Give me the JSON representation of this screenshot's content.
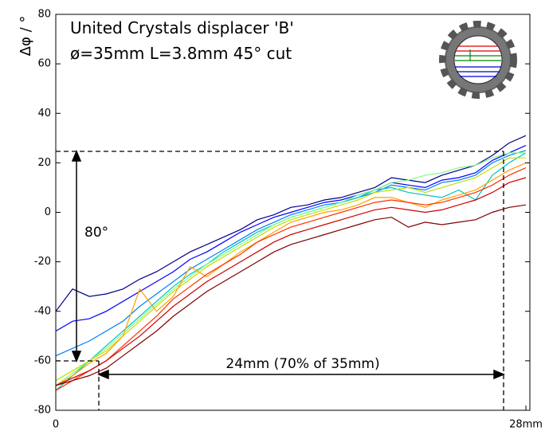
{
  "chart_data": {
    "type": "line",
    "title": "United Crystals displacer 'B'",
    "subtitle": "ø=35mm L=3.8mm 45° cut",
    "y_label": "Δφ / °",
    "annotations": [
      "80°",
      "24mm (70% of 35mm)"
    ],
    "x": [
      0,
      1,
      2,
      3,
      4,
      5,
      6,
      7,
      8,
      9,
      10,
      11,
      12,
      13,
      14,
      15,
      16,
      17,
      18,
      19,
      20,
      21,
      22,
      23,
      24,
      25,
      26,
      27,
      28
    ],
    "xlim": [
      0,
      28
    ],
    "xticks": [
      0,
      {
        "value": 28,
        "label": "28mm"
      }
    ],
    "ylim": [
      -80,
      80
    ],
    "yticks": [
      -80,
      -60,
      -40,
      -20,
      0,
      20,
      40,
      60,
      80
    ],
    "series": [
      {
        "color": "#00008b",
        "values": [
          -40,
          -31,
          -34,
          -33,
          -31,
          -27,
          -24,
          -20,
          -16,
          -13,
          -10,
          -7,
          -3,
          -1,
          2,
          3,
          5,
          6,
          8,
          10,
          14,
          13,
          12,
          15,
          17,
          19,
          23,
          28,
          31
        ]
      },
      {
        "color": "#0000ff",
        "values": [
          -48,
          -44,
          -43,
          -40,
          -36,
          -32,
          -28,
          -24,
          -19,
          -16,
          -12,
          -8,
          -5,
          -2,
          0,
          2,
          4,
          5,
          7,
          9,
          12,
          11,
          10,
          13,
          14,
          16,
          21,
          24,
          27
        ]
      },
      {
        "color": "#0080ff",
        "values": [
          -58,
          -55,
          -52,
          -48,
          -44,
          -38,
          -33,
          -28,
          -23,
          -19,
          -15,
          -11,
          -7,
          -4,
          -1,
          1,
          3,
          4,
          6,
          8,
          11,
          10,
          9,
          12,
          13,
          15,
          20,
          23,
          25
        ]
      },
      {
        "color": "#00c0c0",
        "values": [
          -72,
          -66,
          -60,
          -54,
          -48,
          -42,
          -36,
          -30,
          -25,
          -21,
          -16,
          -12,
          -8,
          -5,
          -2,
          0,
          2,
          4,
          6,
          9,
          10,
          8,
          7,
          6,
          9,
          5,
          15,
          20,
          24
        ]
      },
      {
        "color": "#80ff80",
        "values": [
          -70,
          -65,
          -60,
          -55,
          -49,
          -43,
          -37,
          -31,
          -26,
          -21,
          -17,
          -13,
          -9,
          -5,
          -2,
          0,
          2,
          4,
          7,
          9,
          12,
          13,
          15,
          16,
          18,
          19,
          22,
          24,
          24
        ]
      },
      {
        "color": "#c0e000",
        "values": [
          -68,
          -64,
          -60,
          -56,
          -50,
          -44,
          -38,
          -32,
          -27,
          -22,
          -18,
          -14,
          -10,
          -6,
          -3,
          -1,
          1,
          3,
          5,
          8,
          9,
          10,
          8,
          10,
          12,
          14,
          18,
          22,
          22
        ]
      },
      {
        "color": "#ffa000",
        "values": [
          -70,
          -66,
          -61,
          -57,
          -50,
          -31,
          -40,
          -34,
          -22,
          -26,
          -21,
          -16,
          -12,
          -8,
          -4,
          -2,
          0,
          1,
          3,
          6,
          6,
          4,
          2,
          5,
          7,
          9,
          13,
          17,
          20
        ]
      },
      {
        "color": "#ff3000",
        "values": [
          -72,
          -68,
          -64,
          -60,
          -54,
          -48,
          -42,
          -35,
          -30,
          -25,
          -21,
          -17,
          -12,
          -9,
          -6,
          -4,
          -2,
          0,
          2,
          4,
          5,
          4,
          3,
          4,
          6,
          8,
          11,
          15,
          18
        ]
      },
      {
        "color": "#d00000",
        "values": [
          -70,
          -67,
          -64,
          -60,
          -55,
          -50,
          -44,
          -38,
          -33,
          -28,
          -24,
          -20,
          -16,
          -12,
          -9,
          -7,
          -5,
          -3,
          -1,
          1,
          2,
          1,
          0,
          1,
          3,
          5,
          8,
          12,
          14
        ]
      },
      {
        "color": "#800000",
        "values": [
          -70,
          -68,
          -66,
          -63,
          -58,
          -53,
          -48,
          -42,
          -37,
          -32,
          -28,
          -24,
          -20,
          -16,
          -13,
          -11,
          -9,
          -7,
          -5,
          -3,
          -2,
          -6,
          -4,
          -5,
          -4,
          -3,
          0,
          2,
          3
        ]
      }
    ]
  }
}
